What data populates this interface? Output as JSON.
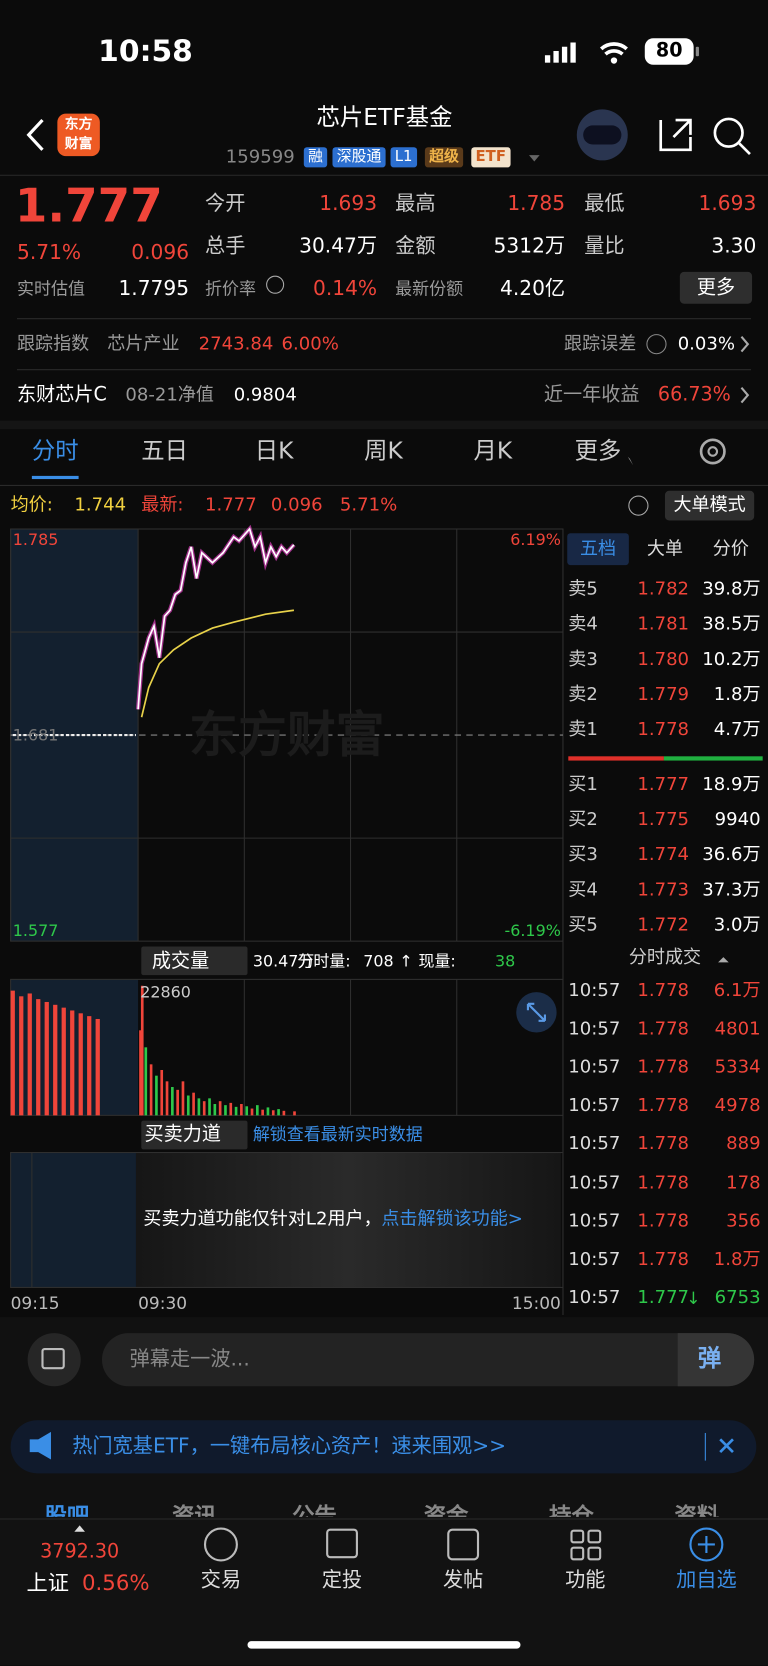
{
  "status": {
    "time": "10:58",
    "battery": "80"
  },
  "header": {
    "logo": [
      "东方",
      "财富"
    ],
    "title": "芯片ETF基金",
    "code": "159599",
    "tags": [
      "融",
      "深股通",
      "L1"
    ],
    "badge": [
      "超级",
      "ETF"
    ]
  },
  "quote": {
    "price": "1.777",
    "change_pct": "5.71%",
    "change": "0.096",
    "stats": [
      [
        {
          "label": "今开",
          "value": "1.693",
          "color": "#f0453a"
        },
        {
          "label": "最高",
          "value": "1.785",
          "color": "#f0453a"
        },
        {
          "label": "最低",
          "value": "1.693",
          "color": "#f0453a"
        }
      ],
      [
        {
          "label": "总手",
          "value": "30.47万",
          "color": "#ffffff"
        },
        {
          "label": "金额",
          "value": "5312万",
          "color": "#ffffff"
        },
        {
          "label": "量比",
          "value": "3.30",
          "color": "#ffffff"
        }
      ],
      [
        {
          "label": "实时估值",
          "value": "1.7795",
          "color": "#ffffff"
        },
        {
          "label": "折价率",
          "value": "0.14%",
          "color": "#f0453a"
        },
        {
          "label": "最新份额",
          "value": "4.20亿",
          "color": "#ffffff"
        }
      ]
    ],
    "more": "更多"
  },
  "tracking": {
    "label": "跟踪指数",
    "index": "芯片产业",
    "value": "2743.84",
    "pct": "6.00%",
    "err_label": "跟踪误差",
    "err": "0.03%"
  },
  "fund": {
    "name": "东财芯片C",
    "date": "08-21净值",
    "nav": "0.9804",
    "ret_label": "近一年收益",
    "ret": "66.73%"
  },
  "tabs": [
    "分时",
    "五日",
    "日K",
    "周K",
    "月K",
    "更多"
  ],
  "info": {
    "avg_label": "均价:",
    "avg": "1.744",
    "last_label": "最新:",
    "last": "1.777",
    "change": "0.096",
    "pct": "5.71%",
    "mode": "大单模式"
  },
  "chart_data": {
    "type": "line",
    "watermark": "东方财富",
    "x": [
      "09:30",
      "09:32",
      "09:36",
      "09:39",
      "09:42",
      "09:45",
      "09:48",
      "09:51",
      "09:54",
      "09:57",
      "10:00",
      "10:03",
      "10:06",
      "10:12",
      "10:18",
      "10:24",
      "10:27",
      "10:33",
      "10:36",
      "10:39",
      "10:42",
      "10:45",
      "10:48",
      "10:51",
      "10:54",
      "10:58"
    ],
    "price": [
      1.694,
      1.717,
      1.73,
      1.736,
      1.72,
      1.741,
      1.744,
      1.752,
      1.754,
      1.768,
      1.776,
      1.76,
      1.773,
      1.768,
      1.773,
      1.781,
      1.779,
      1.785,
      1.776,
      1.781,
      1.768,
      1.776,
      1.771,
      1.776,
      1.773,
      1.777
    ],
    "price_color": "#ffffff",
    "avg_x": [
      "09:32",
      "09:36",
      "09:42",
      "09:50",
      "10:00",
      "10:12",
      "10:24",
      "10:42",
      "10:58"
    ],
    "avg": [
      1.69,
      1.705,
      1.717,
      1.724,
      1.73,
      1.735,
      1.738,
      1.742,
      1.744
    ],
    "avg_color": "#e8d24a",
    "prev_close": 1.681,
    "ylim": [
      1.577,
      1.785
    ],
    "yticks": [
      1.785,
      1.577
    ],
    "y2lim": [
      -6.19,
      6.19
    ],
    "y2ticks": [
      {
        "value": 6.19,
        "label": "6.19%"
      },
      {
        "value": -6.19,
        "label": "-6.19%"
      }
    ],
    "xticks": [
      "09:15",
      "09:30",
      "15:00"
    ],
    "grid": true
  },
  "volume": {
    "label": "成交量",
    "total": "30.47万",
    "minute_label": "分时量:",
    "minute": "708",
    "arrow": "↑",
    "now_label": "现量:",
    "now": "38",
    "max": 22860,
    "auction_x": [
      "09:15",
      "09:16",
      "09:17",
      "09:18",
      "09:19",
      "09:20",
      "09:21",
      "09:22",
      "09:23",
      "09:24",
      "09:25"
    ],
    "auction_values": [
      22000,
      21000,
      21500,
      20500,
      20000,
      19500,
      19000,
      18500,
      18000,
      17500,
      17000
    ],
    "x": [
      "09:30",
      "09:31",
      "09:33",
      "09:36",
      "09:39",
      "09:42",
      "09:45",
      "09:48",
      "09:51",
      "09:54",
      "09:57",
      "10:00",
      "10:03",
      "10:06",
      "10:09",
      "10:12",
      "10:15",
      "10:18",
      "10:21",
      "10:24",
      "10:27",
      "10:30",
      "10:33",
      "10:36",
      "10:39",
      "10:42",
      "10:45",
      "10:48",
      "10:51",
      "10:57"
    ],
    "values": [
      15000,
      22860,
      12000,
      9000,
      7000,
      8000,
      6000,
      5000,
      4500,
      6000,
      3500,
      4000,
      3000,
      2500,
      3000,
      2000,
      2500,
      1800,
      2200,
      1500,
      2000,
      1600,
      1200,
      1800,
      1000,
      1400,
      900,
      1100,
      800,
      708
    ],
    "colors": [
      "#f0453a",
      "#f0453a",
      "#2ec84a",
      "#f0453a",
      "#2ec84a",
      "#f0453a",
      "#f0453a",
      "#2ec84a",
      "#f0453a",
      "#f0453a",
      "#2ec84a",
      "#f0453a",
      "#2ec84a",
      "#f0453a",
      "#2ec84a",
      "#2ec84a",
      "#f0453a",
      "#2ec84a",
      "#f0453a",
      "#2ec84a",
      "#f0453a",
      "#2ec84a",
      "#f0453a",
      "#2ec84a",
      "#f0453a",
      "#2ec84a",
      "#f0453a",
      "#2ec84a",
      "#f0453a",
      "#f0453a"
    ]
  },
  "strength": {
    "title": "买卖力道",
    "link": "解锁查看最新实时数据",
    "message": "买卖力道功能仅针对L2用户，",
    "action": "点击解锁该功能>"
  },
  "orderbook": {
    "tabs": [
      "五档",
      "大单",
      "分价"
    ],
    "asks": [
      {
        "label": "卖5",
        "price": "1.782",
        "vol": "39.8万"
      },
      {
        "label": "卖4",
        "price": "1.781",
        "vol": "38.5万"
      },
      {
        "label": "卖3",
        "price": "1.780",
        "vol": "10.2万"
      },
      {
        "label": "卖2",
        "price": "1.779",
        "vol": "1.8万"
      },
      {
        "label": "卖1",
        "price": "1.778",
        "vol": "4.7万"
      }
    ],
    "bids": [
      {
        "label": "买1",
        "price": "1.777",
        "vol": "18.9万"
      },
      {
        "label": "买2",
        "price": "1.775",
        "vol": "9940"
      },
      {
        "label": "买3",
        "price": "1.774",
        "vol": "36.6万"
      },
      {
        "label": "买4",
        "price": "1.773",
        "vol": "37.3万"
      },
      {
        "label": "买5",
        "price": "1.772",
        "vol": "3.0万"
      }
    ]
  },
  "trades": {
    "title": "分时成交",
    "rows": [
      {
        "time": "10:57",
        "price": "1.778",
        "vol": "6.1万",
        "color": "#f0453a"
      },
      {
        "time": "10:57",
        "price": "1.778",
        "vol": "4801",
        "color": "#f0453a"
      },
      {
        "time": "10:57",
        "price": "1.778",
        "vol": "5334",
        "color": "#f0453a"
      },
      {
        "time": "10:57",
        "price": "1.778",
        "vol": "4978",
        "color": "#f0453a"
      },
      {
        "time": "10:57",
        "price": "1.778",
        "vol": "889",
        "color": "#f0453a"
      },
      {
        "time": "10:57",
        "price": "1.778",
        "vol": "178",
        "color": "#f0453a"
      },
      {
        "time": "10:57",
        "price": "1.778",
        "vol": "356",
        "color": "#f0453a"
      },
      {
        "time": "10:57",
        "price": "1.778",
        "vol": "1.8万",
        "color": "#f0453a"
      },
      {
        "time": "10:57",
        "price": "1.777",
        "arrow": "↓",
        "vol": "6753",
        "color": "#2ec84a"
      }
    ]
  },
  "comment": {
    "placeholder": "弹幕走一波...",
    "button": "弹"
  },
  "banner": "热门宽基ETF，一键布局核心资产！速来围观>>",
  "subtabs": [
    "股吧",
    "资讯",
    "公告",
    "资金",
    "持仓",
    "资料"
  ],
  "nav": {
    "index": {
      "value": "3792.30",
      "name": "上证",
      "pct": "0.56%"
    },
    "items": [
      "交易",
      "定投",
      "发帖",
      "功能",
      "加自选"
    ]
  }
}
